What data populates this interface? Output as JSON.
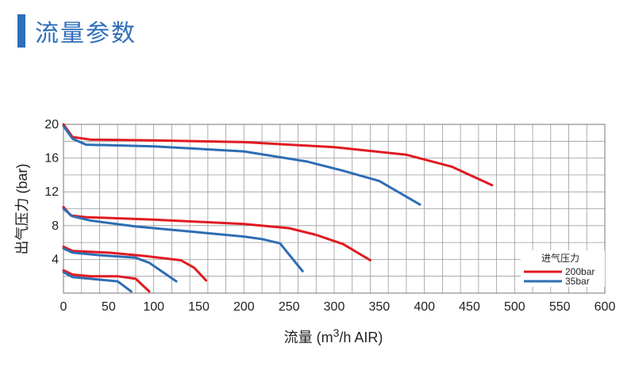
{
  "page": {
    "title": "流量参数"
  },
  "chart_data": {
    "type": "line",
    "xlabel_prefix": "流量 (m",
    "xlabel_sup": "3",
    "xlabel_suffix": "/h AIR)",
    "ylabel": "出气压力 (bar)",
    "xlim": [
      0,
      600
    ],
    "ylim": [
      0,
      20
    ],
    "xticks": [
      0,
      50,
      100,
      150,
      200,
      250,
      300,
      350,
      400,
      450,
      500,
      550,
      600
    ],
    "yticks": [
      4,
      8,
      12,
      16,
      20
    ],
    "grid": true,
    "legend": {
      "title": "进气压力",
      "position": "bottom-right",
      "entries": [
        {
          "name": "200bar",
          "color": "#e01a22"
        },
        {
          "name": "35bar",
          "color": "#2e6db4"
        }
      ]
    },
    "series": [
      {
        "color": "#e01a22",
        "points": [
          [
            0,
            20
          ],
          [
            10,
            18.5
          ],
          [
            30,
            18.2
          ],
          [
            100,
            18.1
          ],
          [
            200,
            17.9
          ],
          [
            300,
            17.3
          ],
          [
            380,
            16.4
          ],
          [
            430,
            15
          ],
          [
            475,
            12.8
          ]
        ]
      },
      {
        "color": "#2e6db4",
        "points": [
          [
            0,
            19.8
          ],
          [
            10,
            18.3
          ],
          [
            25,
            17.6
          ],
          [
            100,
            17.4
          ],
          [
            200,
            16.8
          ],
          [
            270,
            15.6
          ],
          [
            310,
            14.5
          ],
          [
            350,
            13.3
          ],
          [
            395,
            10.5
          ]
        ]
      },
      {
        "color": "#e01a22",
        "points": [
          [
            0,
            10.2
          ],
          [
            8,
            9.2
          ],
          [
            25,
            9.0
          ],
          [
            100,
            8.7
          ],
          [
            200,
            8.2
          ],
          [
            250,
            7.7
          ],
          [
            280,
            6.9
          ],
          [
            310,
            5.8
          ],
          [
            340,
            3.9
          ]
        ]
      },
      {
        "color": "#2e6db4",
        "points": [
          [
            0,
            10.0
          ],
          [
            10,
            9.1
          ],
          [
            30,
            8.6
          ],
          [
            80,
            7.9
          ],
          [
            150,
            7.2
          ],
          [
            200,
            6.7
          ],
          [
            220,
            6.4
          ],
          [
            240,
            5.9
          ],
          [
            265,
            2.6
          ]
        ]
      },
      {
        "color": "#e01a22",
        "points": [
          [
            0,
            5.5
          ],
          [
            10,
            5.0
          ],
          [
            50,
            4.8
          ],
          [
            90,
            4.4
          ],
          [
            130,
            3.9
          ],
          [
            145,
            3.0
          ],
          [
            158,
            1.5
          ]
        ]
      },
      {
        "color": "#2e6db4",
        "points": [
          [
            0,
            5.3
          ],
          [
            10,
            4.8
          ],
          [
            40,
            4.5
          ],
          [
            80,
            4.2
          ],
          [
            95,
            3.6
          ],
          [
            110,
            2.5
          ],
          [
            125,
            1.4
          ]
        ]
      },
      {
        "color": "#e01a22",
        "points": [
          [
            0,
            2.7
          ],
          [
            10,
            2.2
          ],
          [
            30,
            2.0
          ],
          [
            60,
            2.0
          ],
          [
            80,
            1.7
          ],
          [
            95,
            0.2
          ]
        ]
      },
      {
        "color": "#2e6db4",
        "points": [
          [
            0,
            2.5
          ],
          [
            10,
            1.9
          ],
          [
            40,
            1.6
          ],
          [
            60,
            1.4
          ],
          [
            75,
            0.2
          ]
        ]
      }
    ]
  }
}
